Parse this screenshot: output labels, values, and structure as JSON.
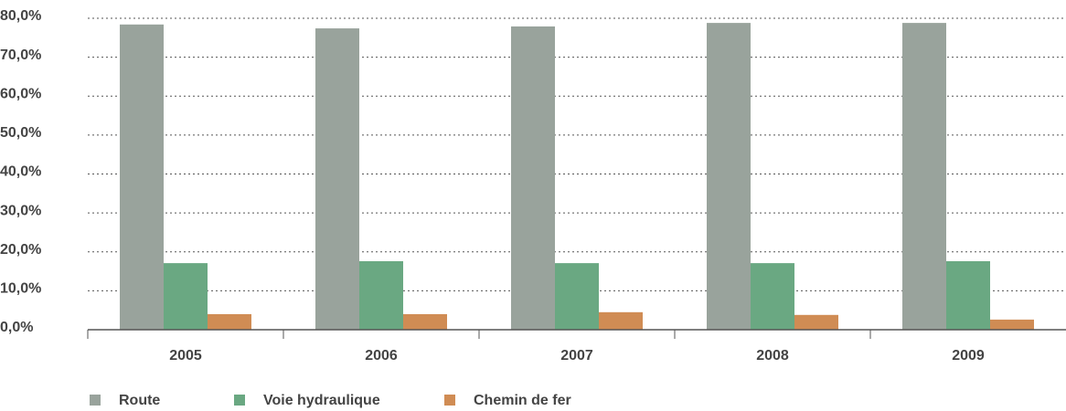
{
  "chart_data": {
    "type": "bar",
    "categories": [
      "2005",
      "2006",
      "2007",
      "2008",
      "2009"
    ],
    "series": [
      {
        "name": "Route",
        "color": "#99a39c",
        "values": [
          78.4,
          77.4,
          77.9,
          78.8,
          78.8
        ]
      },
      {
        "name": "Voie hydraulique",
        "color": "#6aa882",
        "values": [
          17.1,
          17.6,
          17.1,
          17.1,
          17.6
        ]
      },
      {
        "name": "Chemin de fer",
        "color": "#d08c54",
        "values": [
          4.0,
          4.0,
          4.5,
          3.8,
          2.6
        ]
      }
    ],
    "ylim": [
      0,
      80
    ],
    "yticks": [
      {
        "value": 0,
        "label": "0,0%"
      },
      {
        "value": 10,
        "label": "10,0%"
      },
      {
        "value": 20,
        "label": "20,0%"
      },
      {
        "value": 30,
        "label": "30,0%"
      },
      {
        "value": 40,
        "label": "40,0%"
      },
      {
        "value": 50,
        "label": "50,0%"
      },
      {
        "value": 60,
        "label": "60,0%"
      },
      {
        "value": 70,
        "label": "70,0%"
      },
      {
        "value": 80,
        "label": "80,0%"
      }
    ],
    "grid": true,
    "legend": "bottom"
  }
}
